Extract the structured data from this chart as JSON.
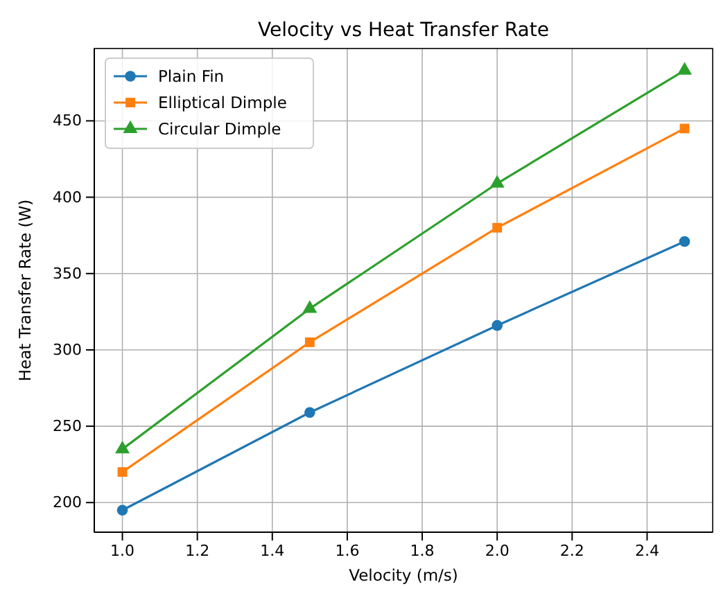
{
  "chart_data": {
    "type": "line",
    "title": "Velocity vs Heat Transfer Rate",
    "xlabel": "Velocity (m/s)",
    "ylabel": "Heat Transfer Rate (W)",
    "x": [
      1.0,
      1.5,
      2.0,
      2.5
    ],
    "series": [
      {
        "name": "Plain Fin",
        "color": "#1f77b4",
        "marker": "circle",
        "values": [
          195,
          259,
          316,
          371
        ]
      },
      {
        "name": "Elliptical Dimple",
        "color": "#ff7f0e",
        "marker": "square",
        "values": [
          220,
          305,
          380,
          445
        ]
      },
      {
        "name": "Circular Dimple",
        "color": "#2ca02c",
        "marker": "triangle",
        "values": [
          235,
          327,
          409,
          483
        ]
      }
    ],
    "xlim": [
      0.925,
      2.575
    ],
    "xticks": [
      {
        "value": 1.0,
        "label": "1.0"
      },
      {
        "value": 1.2,
        "label": "1.2"
      },
      {
        "value": 1.4,
        "label": "1.4"
      },
      {
        "value": 1.6,
        "label": "1.6"
      },
      {
        "value": 1.8,
        "label": "1.8"
      },
      {
        "value": 2.0,
        "label": "2.0"
      },
      {
        "value": 2.2,
        "label": "2.2"
      },
      {
        "value": 2.4,
        "label": "2.4"
      }
    ],
    "ylim": [
      180.6,
      497.4
    ],
    "yticks": [
      200,
      250,
      300,
      350,
      400,
      450
    ],
    "grid": true,
    "legend": "top left",
    "line_style": "solid"
  }
}
